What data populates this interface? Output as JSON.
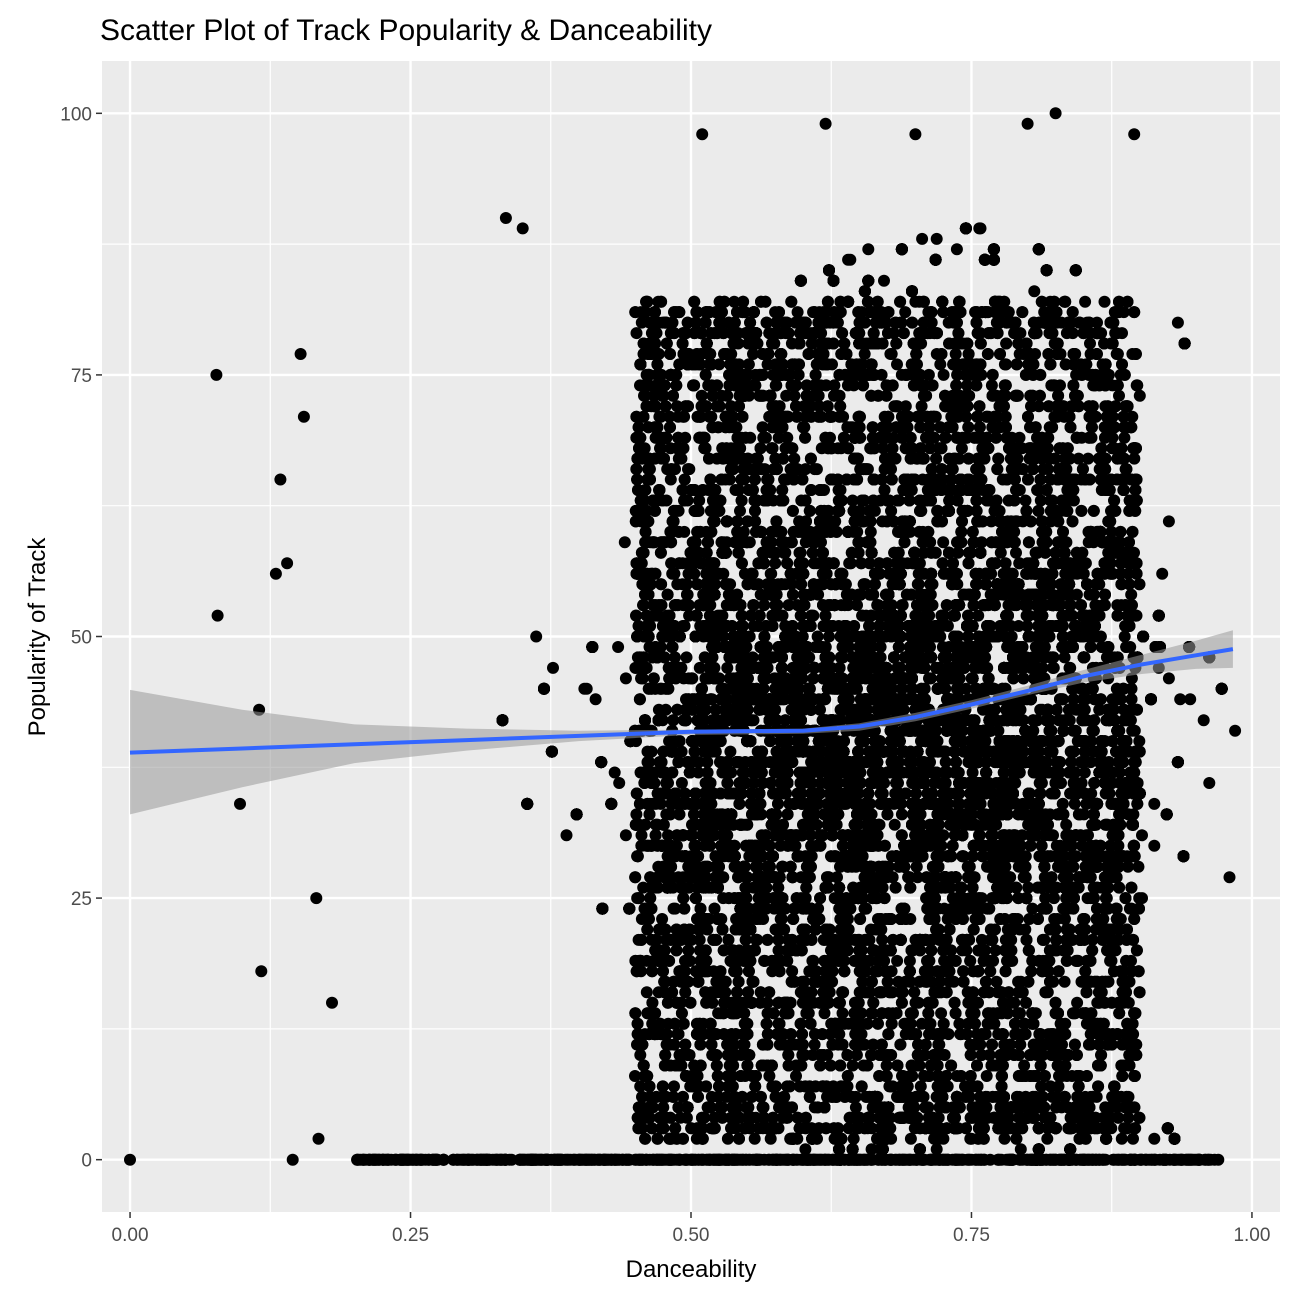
{
  "chart_data": {
    "type": "scatter",
    "title": "Scatter Plot of Track Popularity & Danceability",
    "xlabel": "Danceability",
    "ylabel": "Popularity of Track",
    "xlim": [
      -0.025,
      1.025
    ],
    "ylim": [
      -5,
      105
    ],
    "x_ticks": [
      0.0,
      0.25,
      0.5,
      0.75,
      1.0
    ],
    "x_tick_labels": [
      "0.00",
      "0.25",
      "0.50",
      "0.75",
      "1.00"
    ],
    "y_ticks": [
      0,
      25,
      50,
      75,
      100
    ],
    "y_tick_labels": [
      "0",
      "25",
      "50",
      "75",
      "100"
    ],
    "grid": true,
    "legend": "none",
    "colors": {
      "panel_background": "#ebebeb",
      "grid": "#ffffff",
      "points": "#000000",
      "smooth_line": "#3366ff",
      "confidence_band": "#999999"
    },
    "points_note_values": [
      {
        "x": 0.0,
        "y": 0
      },
      {
        "x": 0.077,
        "y": 75
      },
      {
        "x": 0.078,
        "y": 52
      },
      {
        "x": 0.098,
        "y": 34
      },
      {
        "x": 0.117,
        "y": 18
      },
      {
        "x": 0.115,
        "y": 43
      },
      {
        "x": 0.13,
        "y": 56
      },
      {
        "x": 0.134,
        "y": 65
      },
      {
        "x": 0.14,
        "y": 57
      },
      {
        "x": 0.145,
        "y": 0
      },
      {
        "x": 0.152,
        "y": 77
      },
      {
        "x": 0.155,
        "y": 71
      },
      {
        "x": 0.166,
        "y": 25
      },
      {
        "x": 0.168,
        "y": 2
      },
      {
        "x": 0.18,
        "y": 15
      },
      {
        "x": 0.335,
        "y": 90
      },
      {
        "x": 0.35,
        "y": 89
      },
      {
        "x": 0.51,
        "y": 98
      },
      {
        "x": 0.62,
        "y": 99
      },
      {
        "x": 0.8,
        "y": 99
      },
      {
        "x": 0.825,
        "y": 100
      },
      {
        "x": 0.895,
        "y": 98
      },
      {
        "x": 0.7,
        "y": 98
      },
      {
        "x": 0.985,
        "y": 41
      },
      {
        "x": 0.98,
        "y": 27
      }
    ],
    "dense_region": {
      "x_range": [
        0.4,
        0.95
      ],
      "y_range": [
        0,
        88
      ]
    },
    "smooth": {
      "method": "gam",
      "x": [
        0.0,
        0.1,
        0.2,
        0.3,
        0.4,
        0.5,
        0.6,
        0.65,
        0.7,
        0.75,
        0.8,
        0.85,
        0.9,
        0.95,
        0.983
      ],
      "y": [
        38.9,
        39.3,
        39.7,
        40.1,
        40.5,
        40.9,
        41.0,
        41.4,
        42.3,
        43.5,
        44.8,
        46.2,
        47.3,
        48.2,
        48.8
      ],
      "ci_lower": [
        33.0,
        35.6,
        37.9,
        39.1,
        40.0,
        40.6,
        40.7,
        41.0,
        41.9,
        43.1,
        44.4,
        45.6,
        46.4,
        46.9,
        47.0
      ],
      "ci_upper": [
        44.9,
        43.0,
        41.6,
        41.2,
        41.0,
        41.1,
        41.2,
        41.7,
        42.7,
        43.9,
        45.3,
        46.8,
        48.2,
        49.6,
        50.6
      ]
    }
  }
}
